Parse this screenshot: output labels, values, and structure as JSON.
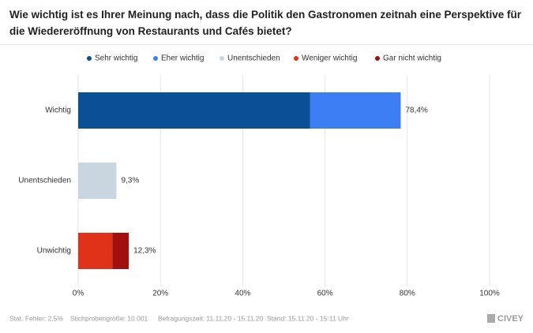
{
  "title": "Wie wichtig ist es Ihrer Meinung nach, dass die Politik den Gastronomen zeitnah eine Perspektive für die Wiedereröffnung von Restaurants und Cafés bietet?",
  "chart_data": {
    "type": "stacked-bar-horizontal",
    "categories": [
      "Wichtig",
      "Unentschieden",
      "Unwichtig"
    ],
    "series": [
      {
        "name": "Sehr wichtig",
        "color": "#0b4f96",
        "values": [
          56.4,
          null,
          null
        ]
      },
      {
        "name": "Eher wichtig",
        "color": "#3d7ef5",
        "values": [
          22.0,
          null,
          null
        ]
      },
      {
        "name": "Unentschieden",
        "color": "#c9d6e0",
        "values": [
          null,
          9.3,
          null
        ]
      },
      {
        "name": "Weniger wichtig",
        "color": "#e03218",
        "values": [
          null,
          null,
          8.3
        ]
      },
      {
        "name": "Gar nicht wichtig",
        "color": "#a30f0f",
        "values": [
          null,
          null,
          4.0
        ]
      }
    ],
    "totals": [
      78.4,
      9.3,
      12.3
    ],
    "total_labels": [
      "78,4%",
      "9,3%",
      "12,3%"
    ],
    "xlim": [
      0,
      100
    ],
    "xticks": [
      {
        "value": 0,
        "label": "0%"
      },
      {
        "value": 20,
        "label": "20%"
      },
      {
        "value": 40,
        "label": "40%"
      },
      {
        "value": 60,
        "label": "60%"
      },
      {
        "value": 80,
        "label": "80%"
      },
      {
        "value": 100,
        "label": "100%"
      }
    ],
    "grid": true
  },
  "footer": {
    "items": [
      "Stat. Fehler: 2,5%",
      "Stichprobengröße: 10.001",
      "Befragungszeit: 11.11.20 - 15.11.20",
      "Stand: 15.11.20 - 15:11 Uhr"
    ],
    "logo": "CIVEY"
  }
}
